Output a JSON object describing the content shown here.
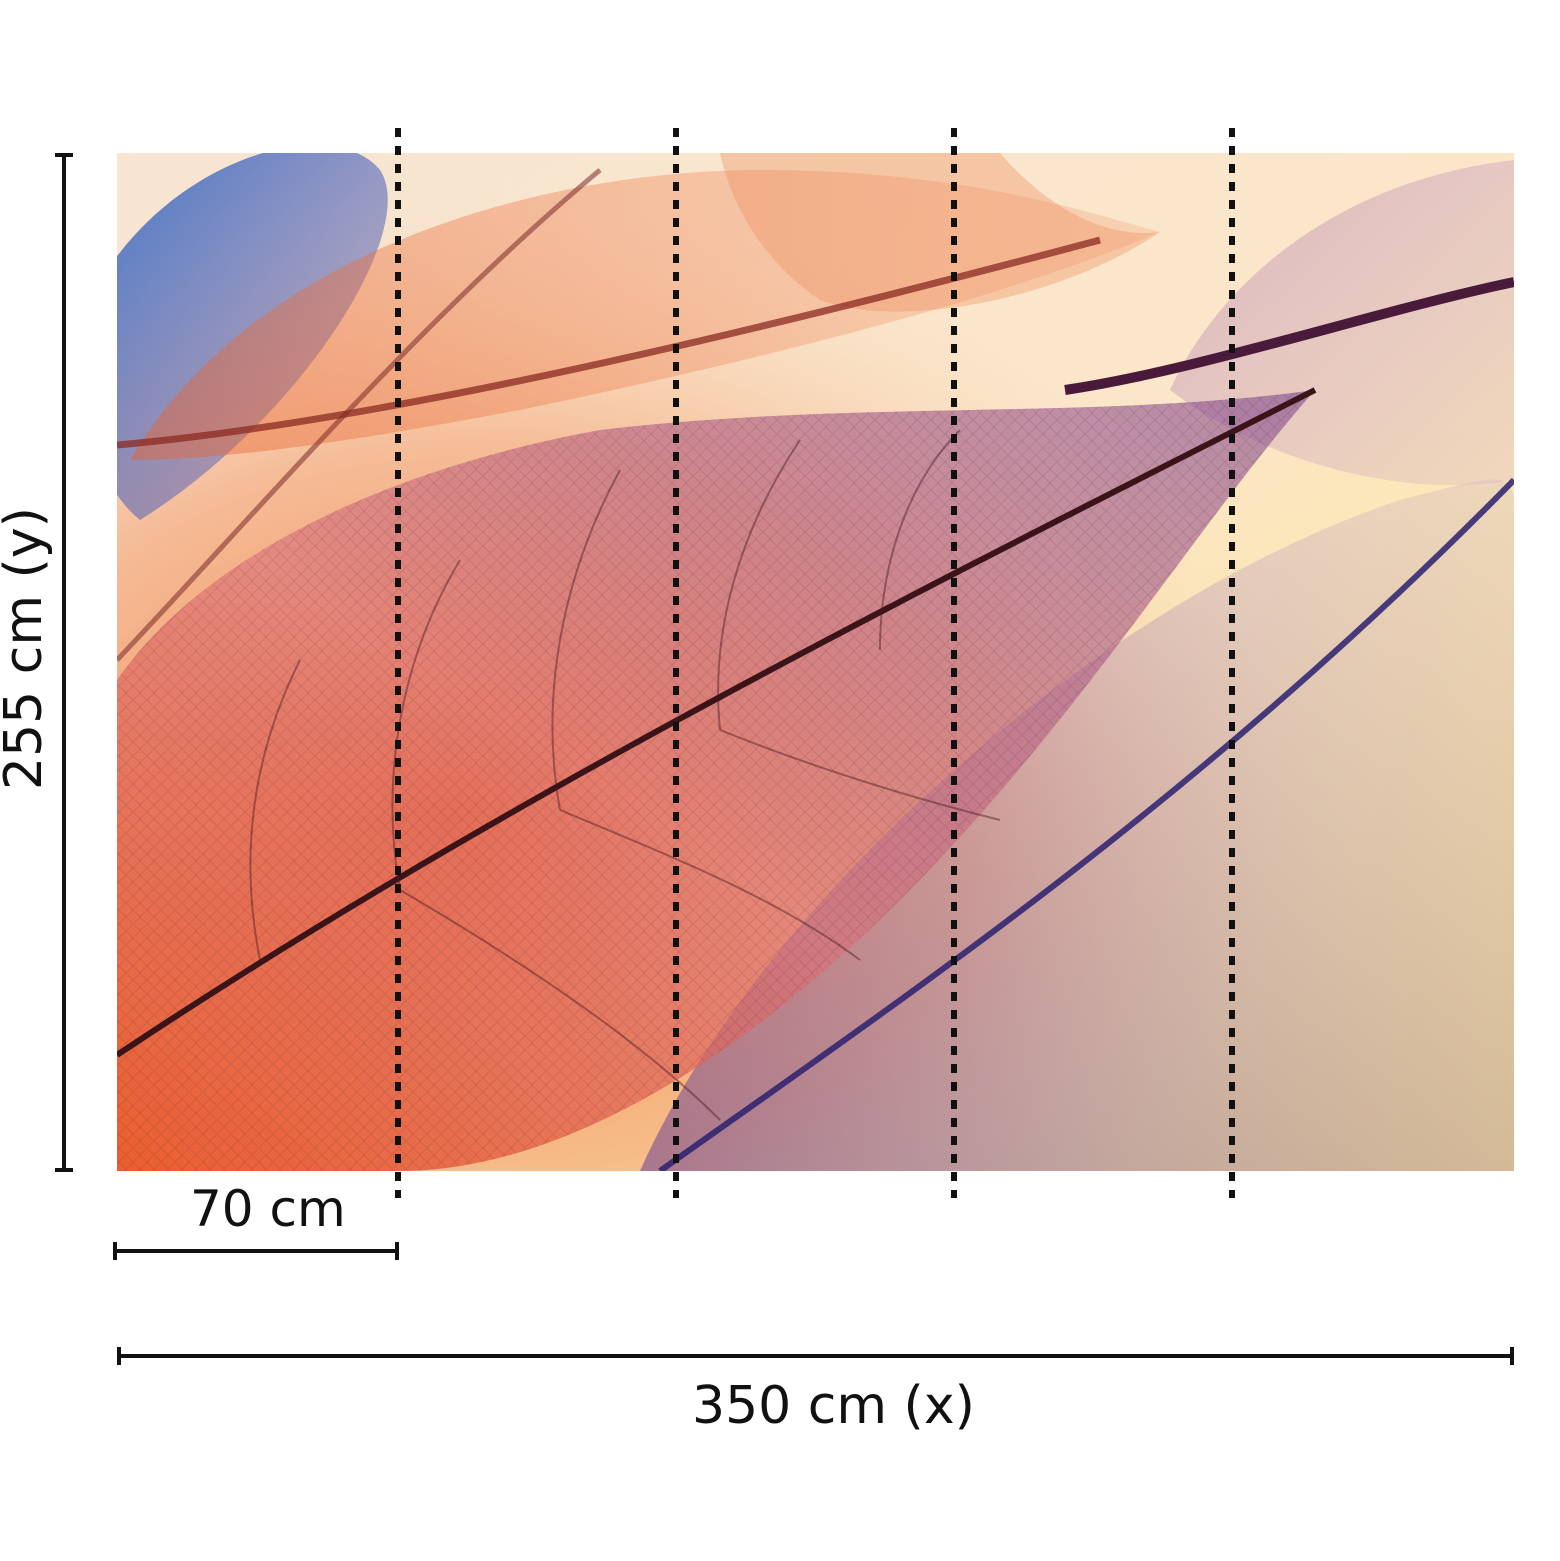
{
  "dimensions": {
    "width_label": "350 cm (x)",
    "height_label": "255 cm (y)",
    "panel_width_label": "70 cm"
  },
  "panels": {
    "count": 5
  },
  "colors": {
    "dimension_line": "#111111",
    "panel_divider": "#111111",
    "leaf_orange": "#e8501e",
    "leaf_purple": "#6a2a7a",
    "leaf_blue": "#2a4fb0",
    "background_cream": "#fbe9cf",
    "background_yellow": "#fbe98a"
  }
}
